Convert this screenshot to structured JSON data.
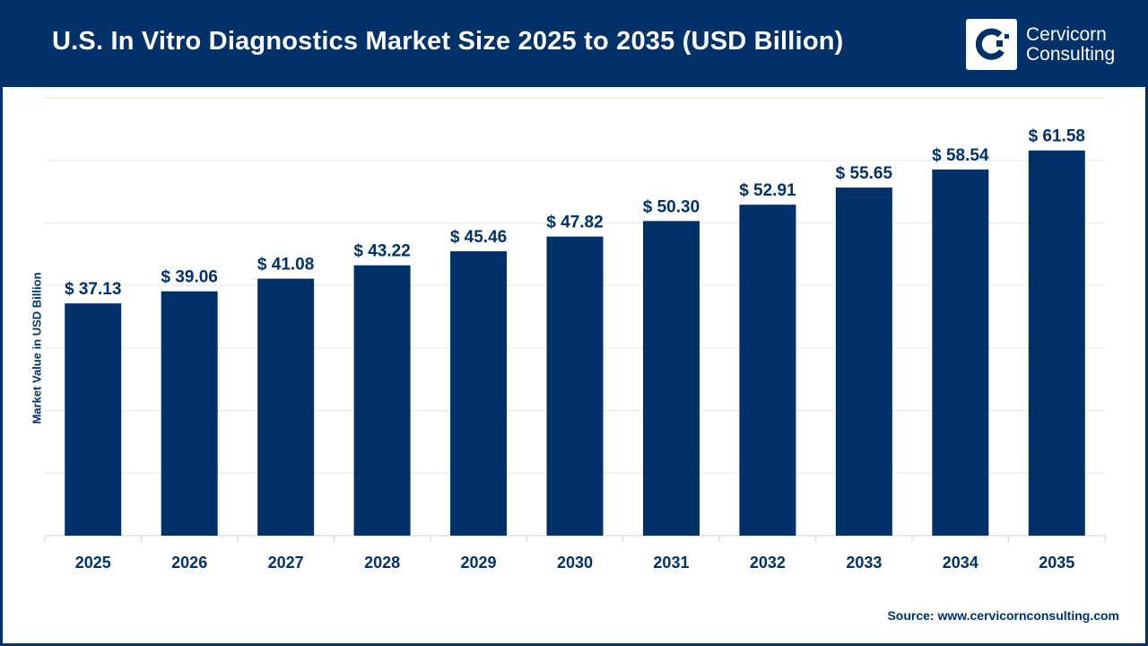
{
  "header": {
    "title": "U.S. In Vitro Diagnostics Market Size 2025 to 2035 (USD Billion)"
  },
  "logo": {
    "line1": "Cervicorn",
    "line2": "Consulting"
  },
  "source": "Source: www.cervicornconsulting.com",
  "colors": {
    "brand": "#003169",
    "bar": "#003169",
    "grid": "#e6e6e6"
  },
  "chart_data": {
    "type": "bar",
    "title": "U.S. In Vitro Diagnostics Market Size 2025 to 2035 (USD Billion)",
    "xlabel": "",
    "ylabel": "Market Value in USD Billion",
    "categories": [
      "2025",
      "2026",
      "2027",
      "2028",
      "2029",
      "2030",
      "2031",
      "2032",
      "2033",
      "2034",
      "2035"
    ],
    "values": [
      37.13,
      39.06,
      41.08,
      43.22,
      45.46,
      47.82,
      50.3,
      52.91,
      55.65,
      58.54,
      61.58
    ],
    "data_labels": [
      "$ 37.13",
      "$ 39.06",
      "$ 41.08",
      "$ 43.22",
      "$ 45.46",
      "$ 47.82",
      "$ 50.30",
      "$ 52.91",
      "$ 55.65",
      "$ 58.54",
      "$ 61.58"
    ],
    "ylim": [
      0,
      70
    ],
    "grid": true,
    "y_tick_labels_shown": false,
    "legend": "none"
  }
}
